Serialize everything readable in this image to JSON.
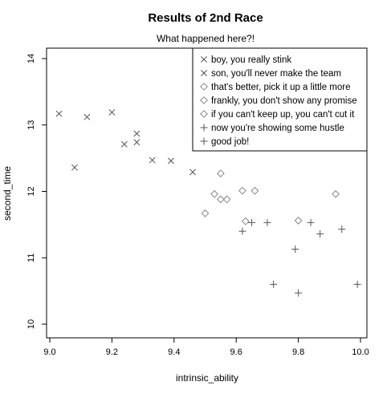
{
  "chart_data": {
    "type": "scatter",
    "title": "Results of 2nd Race",
    "subtitle": "What happened here?!",
    "xlabel": "intrinsic_ability",
    "ylabel": "second_time",
    "xlim": [
      9.0,
      10.0
    ],
    "ylim": [
      10.0,
      14.0
    ],
    "xticks": [
      "9.0",
      "9.2",
      "9.4",
      "9.6",
      "9.8",
      "10.0"
    ],
    "yticks": [
      "10",
      "11",
      "12",
      "13",
      "14"
    ],
    "legend_position": "top-right",
    "grid": false,
    "series": [
      {
        "name": "boy, you really stink",
        "marker": "x",
        "color": "#555555",
        "points": [
          [
            9.03,
            13.17
          ],
          [
            9.12,
            13.12
          ],
          [
            9.2,
            13.19
          ],
          [
            9.28,
            12.87
          ],
          [
            9.28,
            12.74
          ],
          [
            9.24,
            12.71
          ]
        ]
      },
      {
        "name": "son, you'll never make the team",
        "marker": "x",
        "color": "#555555",
        "points": [
          [
            9.08,
            12.36
          ],
          [
            9.33,
            12.47
          ],
          [
            9.39,
            12.46
          ],
          [
            9.46,
            12.29
          ]
        ]
      },
      {
        "name": "that's better, pick it up a little more",
        "marker": "diamond",
        "color": "#888888",
        "points": [
          [
            9.53,
            11.96
          ],
          [
            9.55,
            12.27
          ],
          [
            9.55,
            11.88
          ],
          [
            9.57,
            11.88
          ],
          [
            9.62,
            12.01
          ],
          [
            9.66,
            12.01
          ]
        ]
      },
      {
        "name": "frankly, you don't show any promise",
        "marker": "diamond",
        "color": "#888888",
        "points": [
          [
            9.5,
            11.67
          ],
          [
            9.63,
            11.55
          ],
          [
            9.8,
            11.56
          ],
          [
            9.92,
            11.96
          ]
        ]
      },
      {
        "name": "if you can't keep up, you can't cut it",
        "marker": "diamond",
        "color": "#888888",
        "points": []
      },
      {
        "name": "now you're showing some hustle",
        "marker": "plus",
        "color": "#555555",
        "points": [
          [
            9.62,
            11.4
          ],
          [
            9.65,
            11.53
          ],
          [
            9.7,
            11.53
          ],
          [
            9.84,
            11.53
          ],
          [
            9.87,
            11.36
          ],
          [
            9.94,
            11.43
          ]
        ]
      },
      {
        "name": "good job!",
        "marker": "plus",
        "color": "#555555",
        "points": [
          [
            9.72,
            10.6
          ],
          [
            9.79,
            11.13
          ],
          [
            9.8,
            10.47
          ],
          [
            9.99,
            10.6
          ]
        ]
      }
    ]
  }
}
